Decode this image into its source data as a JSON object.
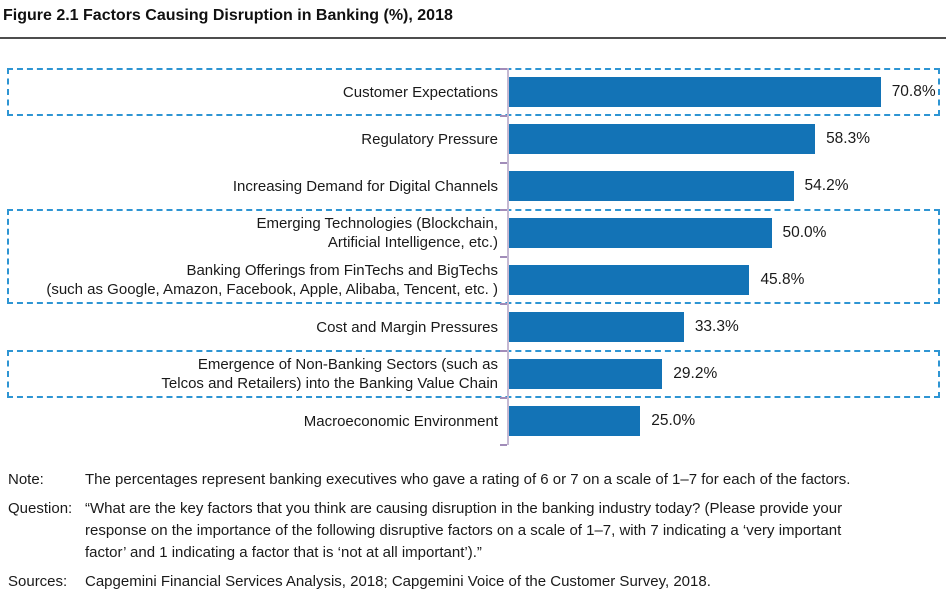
{
  "title": "Figure 2.1 Factors Causing Disruption in Banking (%), 2018",
  "chart_data": {
    "type": "bar",
    "orientation": "horizontal",
    "title": "Figure 2.1 Factors Causing Disruption in Banking (%), 2018",
    "categories": [
      "Customer Expectations",
      "Regulatory Pressure",
      "Increasing Demand for Digital Channels",
      "Emerging Technologies (Blockchain,\nArtificial Intelligence, etc.)",
      "Banking Offerings from FinTechs and BigTechs\n(such as Google, Amazon, Facebook, Apple, Alibaba, Tencent, etc. )",
      "Cost and Margin Pressures",
      "Emergence of Non-Banking Sectors (such as\nTelcos and Retailers) into the Banking Value Chain",
      "Macroeconomic Environment"
    ],
    "values": [
      70.8,
      58.3,
      54.2,
      50.0,
      45.8,
      33.3,
      29.2,
      25.0
    ],
    "value_labels": [
      "70.8%",
      "58.3%",
      "54.2%",
      "50.0%",
      "45.8%",
      "33.3%",
      "29.2%",
      "25.0%"
    ],
    "xlabel": "",
    "ylabel": "",
    "xlim": [
      0,
      80
    ],
    "grid": false,
    "legend": null,
    "bar_color": "#1373B6",
    "axis_color": "#C4B8D2",
    "tick_color": "#A18CB9",
    "highlight_box_color": "#2E95D3",
    "highlight_style": "dashed-box",
    "highlighted_groups": [
      [
        0
      ],
      [
        3,
        4
      ],
      [
        6
      ]
    ]
  },
  "notes": {
    "note_label": "Note:",
    "note_text": "The percentages represent banking executives who gave a rating of 6 or 7 on a scale of 1–7 for each of the factors.",
    "question_label": "Question:",
    "question_lines": [
      "“What are the key factors that you think are causing disruption in the banking industry today? (Please provide your",
      "response on the importance of the following disruptive factors on a scale of 1–7, with 7 indicating a ‘very important",
      "factor’ and 1 indicating a factor that is ‘not at all important’).”"
    ],
    "sources_label": "Sources:",
    "sources_text": "Capgemini Financial Services Analysis, 2018; Capgemini Voice of the Customer Survey, 2018."
  }
}
